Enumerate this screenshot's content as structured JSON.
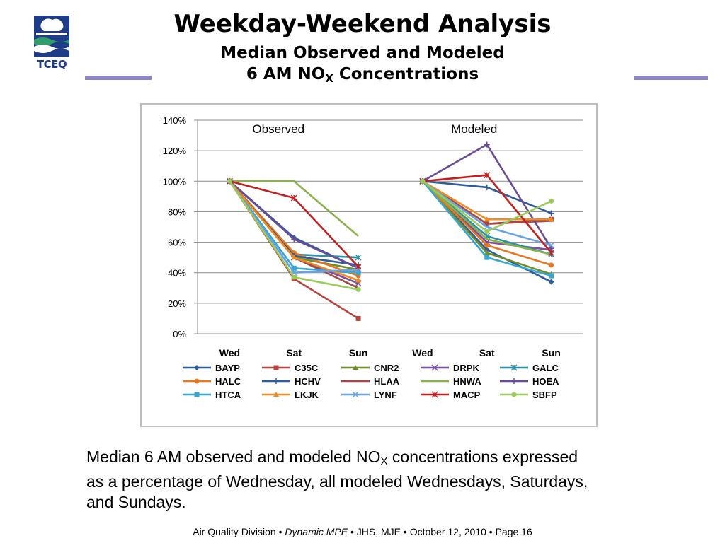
{
  "header": {
    "logo_text": "TCEQ",
    "title": "Weekday-Weekend Analysis",
    "subtitle_line1": "Median Observed and Modeled",
    "subtitle_line2_pre": "6 AM NO",
    "subtitle_line2_sub": "X",
    "subtitle_line2_post": " Concentrations",
    "rule_color": "#8a86c9"
  },
  "caption": {
    "pre": "Median 6 AM observed and modeled NO",
    "sub": "X",
    "post": " concentrations expressed as a percentage of Wednesday, all modeled Wednesdays, Saturdays, and Sundays."
  },
  "footer": {
    "division": "Air Quality Division",
    "program": "Dynamic MPE",
    "authors": "JHS, MJE",
    "date": "October 12, 2010",
    "page": "Page 16"
  },
  "chart_data": {
    "type": "line",
    "panels": [
      "Observed",
      "Modeled"
    ],
    "categories": [
      "Wed",
      "Sat",
      "Sun",
      "Wed",
      "Sat",
      "Sun"
    ],
    "ylim": [
      0,
      140
    ],
    "yticks": [
      "0%",
      "20%",
      "40%",
      "60%",
      "80%",
      "100%",
      "120%",
      "140%"
    ],
    "grid": true,
    "legend_position": "bottom",
    "series": [
      {
        "name": "BAYP",
        "color": "#2e5d9a",
        "marker": "diamond",
        "observed": [
          100,
          63,
          43
        ],
        "modeled": [
          100,
          55,
          34
        ]
      },
      {
        "name": "C35C",
        "color": "#b5433f",
        "marker": "square",
        "observed": [
          100,
          36,
          10
        ],
        "modeled": [
          100,
          72,
          75
        ]
      },
      {
        "name": "CNR2",
        "color": "#6f8f2a",
        "marker": "triangle",
        "observed": [
          100,
          50,
          42
        ],
        "modeled": [
          100,
          53,
          39
        ]
      },
      {
        "name": "DRPK",
        "color": "#7b4ea3",
        "marker": "x",
        "observed": [
          100,
          50,
          33
        ],
        "modeled": [
          100,
          60,
          55
        ]
      },
      {
        "name": "GALC",
        "color": "#2f8fa6",
        "marker": "star",
        "observed": [
          100,
          52,
          50
        ],
        "modeled": [
          100,
          64,
          52
        ]
      },
      {
        "name": "HALC",
        "color": "#e8761e",
        "marker": "circle",
        "observed": [
          100,
          53,
          38
        ],
        "modeled": [
          100,
          58,
          45
        ]
      },
      {
        "name": "HCHV",
        "color": "#2e5d9a",
        "marker": "plus",
        "observed": [
          100,
          51,
          45
        ],
        "modeled": [
          100,
          96,
          79
        ]
      },
      {
        "name": "HLAA",
        "color": "#a24a4a",
        "marker": "none",
        "observed": [
          100,
          50,
          30
        ],
        "modeled": [
          100,
          72,
          74
        ]
      },
      {
        "name": "HNWA",
        "color": "#8bb24a",
        "marker": "none",
        "observed": [
          100,
          100,
          64
        ],
        "modeled": [
          100,
          62,
          52
        ]
      },
      {
        "name": "HOEA",
        "color": "#6a4b95",
        "marker": "plus",
        "observed": [
          100,
          62,
          43
        ],
        "modeled": [
          100,
          124,
          56
        ]
      },
      {
        "name": "HTCA",
        "color": "#37a6cf",
        "marker": "square",
        "observed": [
          100,
          43,
          40
        ],
        "modeled": [
          100,
          50,
          38
        ]
      },
      {
        "name": "LKJK",
        "color": "#f08b24",
        "marker": "triangle",
        "observed": [
          100,
          50,
          35
        ],
        "modeled": [
          100,
          75,
          75
        ]
      },
      {
        "name": "LYNF",
        "color": "#6aa4e0",
        "marker": "x",
        "observed": [
          100,
          40,
          42
        ],
        "modeled": [
          100,
          70,
          58
        ]
      },
      {
        "name": "MACP",
        "color": "#c0201f",
        "marker": "star",
        "observed": [
          100,
          89,
          44
        ],
        "modeled": [
          100,
          104,
          53
        ]
      },
      {
        "name": "SBFP",
        "color": "#9ccb5c",
        "marker": "circle",
        "observed": [
          100,
          37,
          29
        ],
        "modeled": [
          100,
          67,
          87
        ]
      }
    ]
  }
}
